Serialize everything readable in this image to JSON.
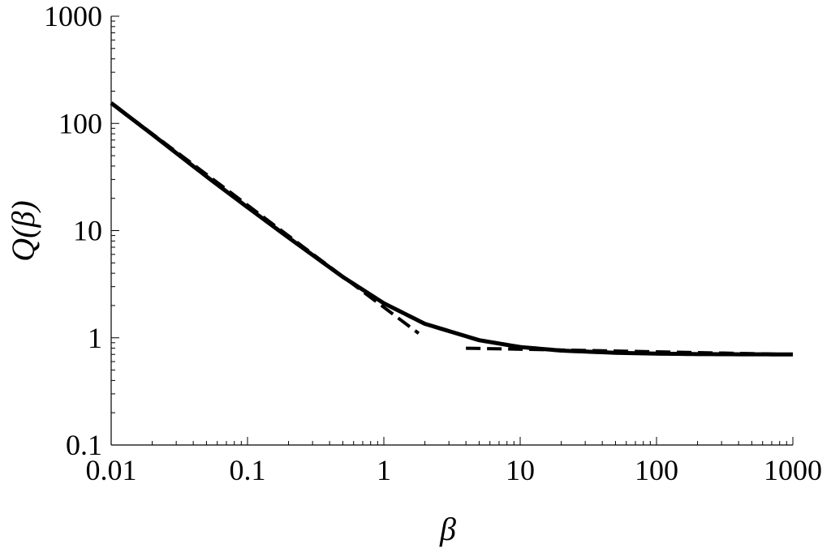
{
  "chart_data": {
    "type": "line",
    "xscale": "log",
    "yscale": "log",
    "xlim": [
      0.01,
      1000
    ],
    "ylim": [
      0.1,
      1000
    ],
    "xlabel": "β",
    "ylabel": "Q(β)",
    "xticks": [
      "0.01",
      "0.1",
      "1",
      "10",
      "100",
      "1000"
    ],
    "yticks": [
      "0.1",
      "1",
      "10",
      "100",
      "1000"
    ],
    "grid": false,
    "series": [
      {
        "style": "solid",
        "x": [
          0.01,
          0.02,
          0.05,
          0.1,
          0.2,
          0.5,
          1,
          2,
          5,
          10,
          20,
          50,
          100,
          200,
          500,
          1000
        ],
        "y": [
          155,
          79,
          32,
          16.5,
          8.6,
          3.7,
          2.1,
          1.35,
          0.95,
          0.82,
          0.76,
          0.725,
          0.712,
          0.705,
          0.701,
          0.7
        ]
      },
      {
        "style": "dashed",
        "x": [
          0.01,
          1.8
        ],
        "y": [
          155,
          1.1
        ]
      },
      {
        "style": "dashed",
        "x": [
          4,
          1000
        ],
        "y": [
          0.8,
          0.7
        ]
      }
    ]
  }
}
